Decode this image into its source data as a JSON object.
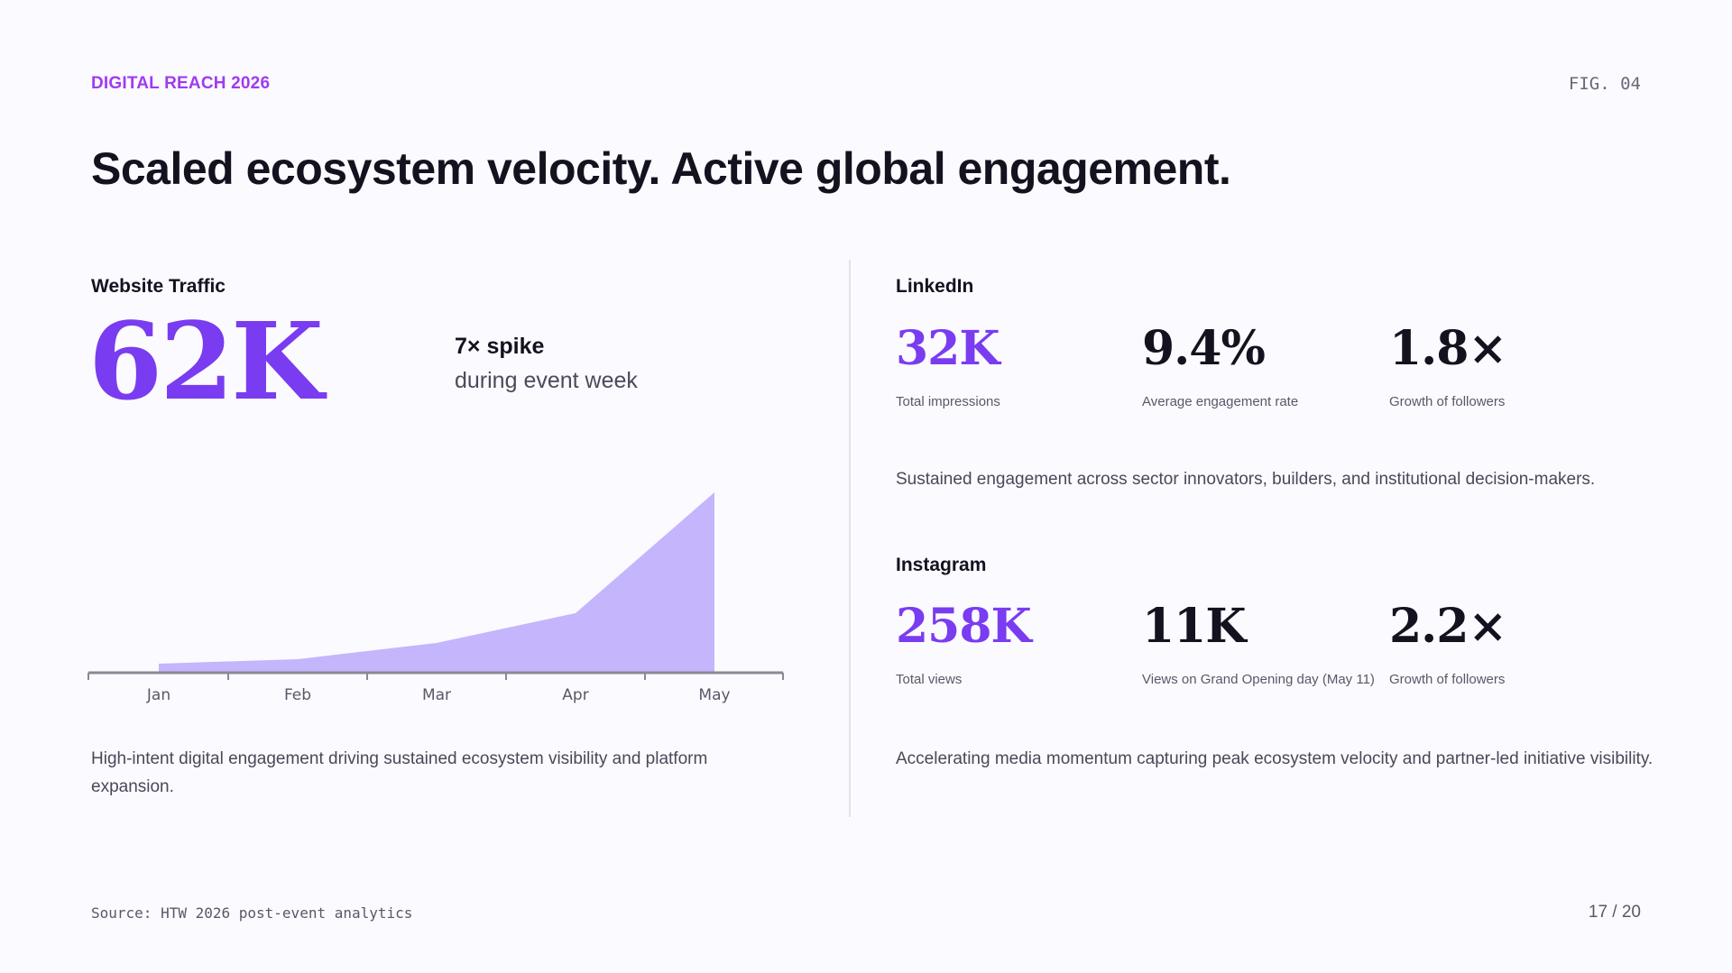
{
  "header": {
    "eyebrow": "DIGITAL REACH 2026",
    "fig_label": "FIG. 04",
    "headline": "Scaled ecosystem velocity. Active global engagement."
  },
  "website": {
    "title": "Website Traffic",
    "big_stat": "62K",
    "spike_title": "7× spike",
    "spike_sub": "during event week",
    "caption": "High-intent digital engagement driving sustained ecosystem visibility and platform expansion."
  },
  "linkedin": {
    "title": "LinkedIn",
    "stats": [
      {
        "value": "32K",
        "label": "Total impressions"
      },
      {
        "value": "9.4%",
        "label": "Average engagement rate"
      },
      {
        "value": "1.8×",
        "label": "Growth of followers"
      }
    ],
    "caption": "Sustained engagement across sector innovators, builders, and institutional decision-makers."
  },
  "instagram": {
    "title": "Instagram",
    "stats": [
      {
        "value": "258K",
        "label": "Total views"
      },
      {
        "value": "11K",
        "label": "Views on Grand Opening day (May 11)"
      },
      {
        "value": "2.2×",
        "label": "Growth of followers"
      }
    ],
    "caption": "Accelerating media momentum capturing peak ecosystem velocity and partner-led initiative visibility."
  },
  "footer": {
    "source": "Source: HTW 2026 post-event analytics",
    "page": "17 / 20"
  },
  "colors": {
    "accent": "#7a3cf0",
    "eyebrow": "#a03bf0",
    "area_fill": "#c4b5fd",
    "axis": "#8a8894"
  },
  "chart_data": {
    "type": "area",
    "categories": [
      "Jan",
      "Feb",
      "Mar",
      "Apr",
      "May"
    ],
    "values": [
      1,
      1.5,
      3.3,
      6.6,
      20
    ],
    "ylim": [
      0,
      20
    ],
    "grid": false
  }
}
